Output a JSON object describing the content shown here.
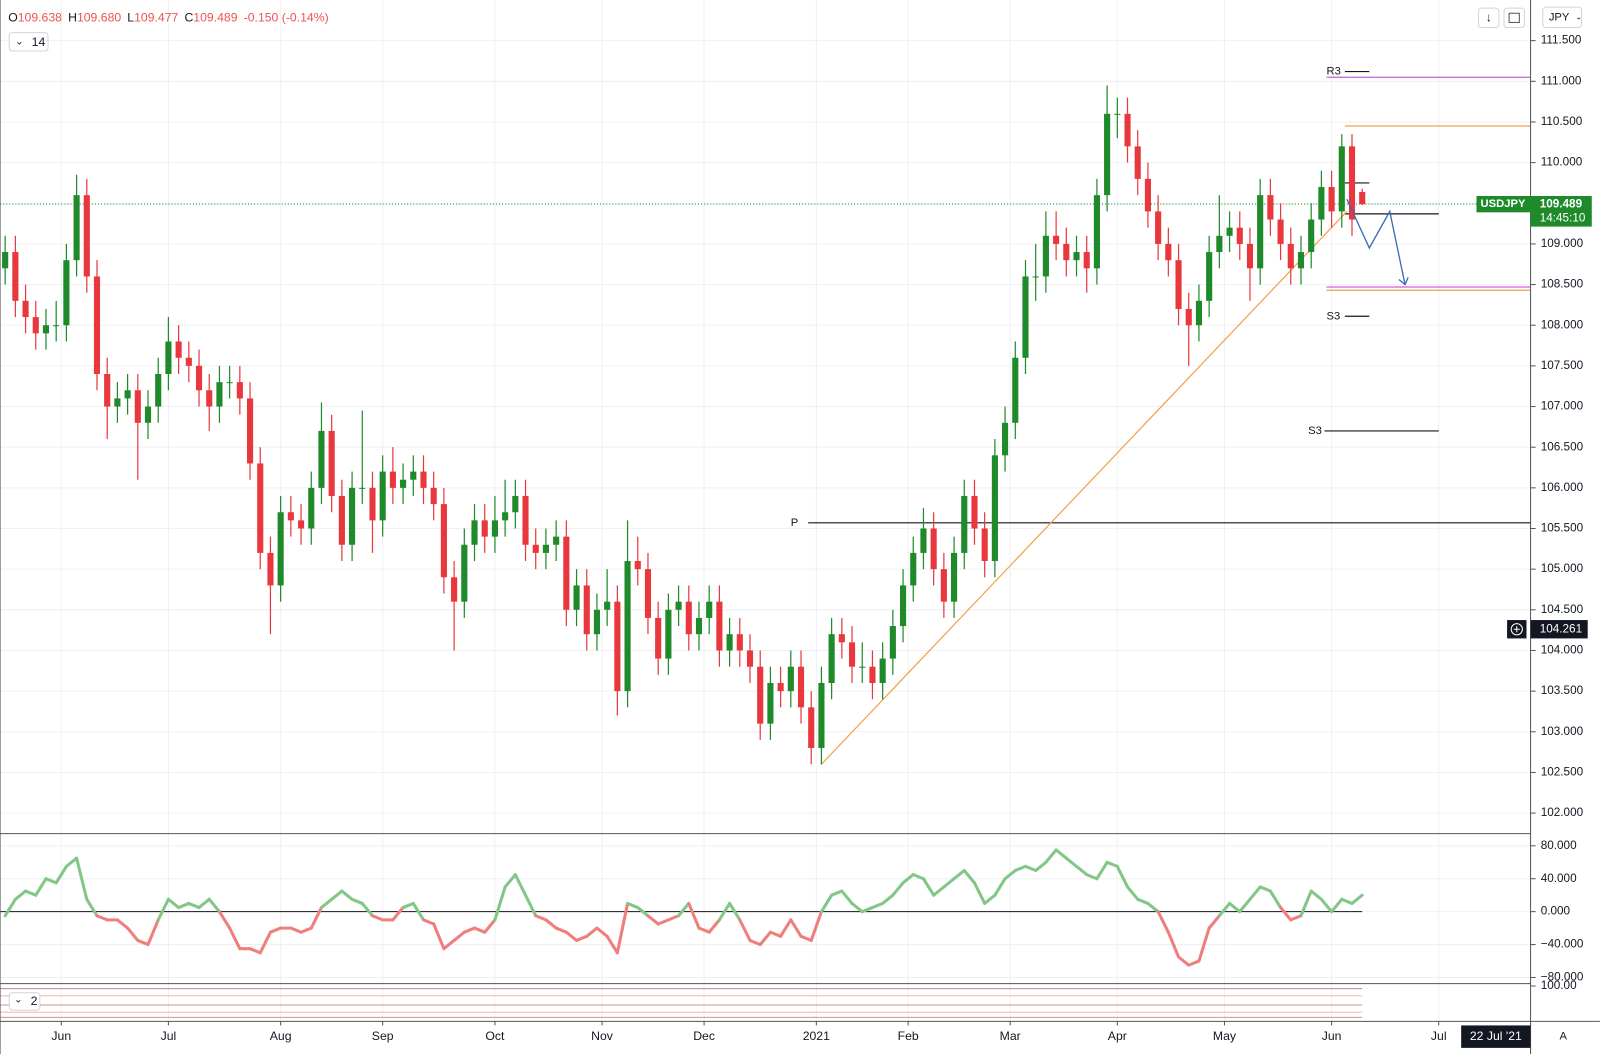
{
  "header": [
    {
      "key": "O",
      "value": "109.638"
    },
    {
      "key": "H",
      "value": "109.680"
    },
    {
      "key": "L",
      "value": "109.477"
    },
    {
      "key": "C",
      "value": "109.489"
    },
    {
      "key": "",
      "value": "-0.150 (-0.14%)"
    }
  ],
  "indicator_button": "14",
  "currency_button": "JPY",
  "date_badge": "22 Jul '21",
  "auto_button": "A",
  "chart_data": [
    {
      "type": "candlestick",
      "symbol": "USDJPY",
      "last": 109.489,
      "countdown": "14:45:10",
      "crosshair": 104.261,
      "up_color": "#1e8a2a",
      "down_color": "#e8383d",
      "grid": true,
      "xlim": [
        -0.5,
        149.5
      ],
      "ylim": [
        101.76,
        112.0
      ],
      "xticks": [
        {
          "value": 5.5,
          "label": "Jun"
        },
        {
          "value": 16,
          "label": "Jul"
        },
        {
          "value": 27,
          "label": "Aug"
        },
        {
          "value": 37,
          "label": "Sep"
        },
        {
          "value": 48,
          "label": "Oct"
        },
        {
          "value": 58.5,
          "label": "Nov"
        },
        {
          "value": 68.5,
          "label": "Dec"
        },
        {
          "value": 79.5,
          "label": "2021"
        },
        {
          "value": 88.5,
          "label": "Feb"
        },
        {
          "value": 98.5,
          "label": "Mar"
        },
        {
          "value": 109,
          "label": "Apr"
        },
        {
          "value": 119.5,
          "label": "May"
        },
        {
          "value": 130,
          "label": "Jun"
        },
        {
          "value": 140.5,
          "label": "Jul"
        }
      ],
      "yticks": [
        {
          "value": 102,
          "label": "102.000"
        },
        {
          "value": 102.5,
          "label": "102.500"
        },
        {
          "value": 103,
          "label": "103.000"
        },
        {
          "value": 103.5,
          "label": "103.500"
        },
        {
          "value": 104,
          "label": "104.000"
        },
        {
          "value": 104.5,
          "label": "104.500"
        },
        {
          "value": 105,
          "label": "105.000"
        },
        {
          "value": 105.5,
          "label": "105.500"
        },
        {
          "value": 106,
          "label": "106.000"
        },
        {
          "value": 106.5,
          "label": "106.500"
        },
        {
          "value": 107,
          "label": "107.000"
        },
        {
          "value": 107.5,
          "label": "107.500"
        },
        {
          "value": 108,
          "label": "108.000"
        },
        {
          "value": 108.5,
          "label": "108.500"
        },
        {
          "value": 109,
          "label": "109.000"
        },
        {
          "value": 109.5,
          "label": "109.500"
        },
        {
          "value": 110,
          "label": "110.000"
        },
        {
          "value": 110.5,
          "label": "110.500"
        },
        {
          "value": 111,
          "label": "111.000"
        },
        {
          "value": 111.5,
          "label": "111.500"
        }
      ],
      "candles": [
        [
          108.7,
          109.1,
          108.5,
          108.9
        ],
        [
          108.9,
          109.1,
          108.1,
          108.3
        ],
        [
          108.3,
          108.5,
          107.9,
          108.1
        ],
        [
          108.1,
          108.3,
          107.7,
          107.9
        ],
        [
          107.9,
          108.2,
          107.7,
          108.0
        ],
        [
          108.0,
          108.3,
          107.8,
          108.0
        ],
        [
          108.0,
          109.0,
          107.8,
          108.8
        ],
        [
          108.8,
          109.85,
          108.6,
          109.6
        ],
        [
          109.6,
          109.8,
          108.4,
          108.6
        ],
        [
          108.6,
          108.8,
          107.2,
          107.4
        ],
        [
          107.4,
          107.6,
          106.6,
          107.0
        ],
        [
          107.0,
          107.3,
          106.8,
          107.1
        ],
        [
          107.1,
          107.4,
          106.9,
          107.2
        ],
        [
          107.2,
          107.4,
          106.1,
          106.8
        ],
        [
          106.8,
          107.2,
          106.6,
          107.0
        ],
        [
          107.0,
          107.6,
          106.8,
          107.4
        ],
        [
          107.4,
          108.1,
          107.2,
          107.8
        ],
        [
          107.8,
          108.0,
          107.4,
          107.6
        ],
        [
          107.6,
          107.8,
          107.3,
          107.5
        ],
        [
          107.5,
          107.7,
          107.0,
          107.2
        ],
        [
          107.2,
          107.4,
          106.7,
          107.0
        ],
        [
          107.0,
          107.5,
          106.8,
          107.3
        ],
        [
          107.3,
          107.5,
          107.1,
          107.3
        ],
        [
          107.3,
          107.5,
          106.9,
          107.1
        ],
        [
          107.1,
          107.3,
          106.1,
          106.3
        ],
        [
          106.3,
          106.5,
          105.0,
          105.2
        ],
        [
          105.2,
          105.4,
          104.2,
          104.8
        ],
        [
          104.8,
          105.9,
          104.6,
          105.7
        ],
        [
          105.7,
          105.9,
          105.4,
          105.6
        ],
        [
          105.6,
          105.8,
          105.3,
          105.5
        ],
        [
          105.5,
          106.2,
          105.3,
          106.0
        ],
        [
          106.0,
          107.05,
          105.8,
          106.7
        ],
        [
          106.7,
          106.9,
          105.7,
          105.9
        ],
        [
          105.9,
          106.1,
          105.1,
          105.3
        ],
        [
          105.3,
          106.2,
          105.1,
          106.0
        ],
        [
          106.0,
          106.95,
          105.8,
          106.0
        ],
        [
          106.0,
          106.2,
          105.2,
          105.6
        ],
        [
          105.6,
          106.4,
          105.4,
          106.2
        ],
        [
          106.2,
          106.5,
          105.8,
          106.0
        ],
        [
          106.0,
          106.3,
          105.8,
          106.1
        ],
        [
          106.1,
          106.4,
          105.9,
          106.2
        ],
        [
          106.2,
          106.4,
          105.8,
          106.0
        ],
        [
          106.0,
          106.2,
          105.6,
          105.8
        ],
        [
          105.8,
          106.0,
          104.7,
          104.9
        ],
        [
          104.9,
          105.1,
          104.0,
          104.6
        ],
        [
          104.6,
          105.5,
          104.4,
          105.3
        ],
        [
          105.3,
          105.8,
          105.1,
          105.6
        ],
        [
          105.6,
          105.8,
          105.2,
          105.4
        ],
        [
          105.4,
          105.9,
          105.2,
          105.6
        ],
        [
          105.6,
          106.1,
          105.4,
          105.7
        ],
        [
          105.7,
          106.1,
          105.5,
          105.9
        ],
        [
          105.9,
          106.1,
          105.1,
          105.3
        ],
        [
          105.3,
          105.5,
          105.0,
          105.2
        ],
        [
          105.2,
          105.5,
          105.0,
          105.3
        ],
        [
          105.3,
          105.6,
          105.1,
          105.4
        ],
        [
          105.4,
          105.6,
          104.3,
          104.5
        ],
        [
          104.5,
          105.0,
          104.3,
          104.8
        ],
        [
          104.8,
          105.0,
          104.0,
          104.2
        ],
        [
          104.2,
          104.7,
          104.0,
          104.5
        ],
        [
          104.5,
          105.0,
          104.3,
          104.6
        ],
        [
          104.6,
          104.8,
          103.2,
          103.5
        ],
        [
          103.5,
          105.6,
          103.3,
          105.1
        ],
        [
          105.1,
          105.4,
          104.8,
          105.0
        ],
        [
          105.0,
          105.2,
          104.2,
          104.4
        ],
        [
          104.4,
          104.6,
          103.7,
          103.9
        ],
        [
          103.9,
          104.7,
          103.7,
          104.5
        ],
        [
          104.5,
          104.8,
          104.3,
          104.6
        ],
        [
          104.6,
          104.8,
          104.0,
          104.2
        ],
        [
          104.2,
          104.6,
          104.0,
          104.4
        ],
        [
          104.4,
          104.8,
          104.2,
          104.6
        ],
        [
          104.6,
          104.8,
          103.8,
          104.0
        ],
        [
          104.0,
          104.4,
          103.8,
          104.2
        ],
        [
          104.2,
          104.4,
          103.8,
          104.0
        ],
        [
          104.0,
          104.2,
          103.6,
          103.8
        ],
        [
          103.8,
          104.0,
          102.9,
          103.1
        ],
        [
          103.1,
          103.8,
          102.9,
          103.6
        ],
        [
          103.6,
          103.8,
          103.3,
          103.5
        ],
        [
          103.5,
          104.0,
          103.3,
          103.8
        ],
        [
          103.8,
          104.0,
          103.1,
          103.3
        ],
        [
          103.3,
          103.5,
          102.6,
          102.8
        ],
        [
          102.8,
          103.8,
          102.6,
          103.6
        ],
        [
          103.6,
          104.4,
          103.4,
          104.2
        ],
        [
          104.2,
          104.4,
          103.9,
          104.1
        ],
        [
          104.1,
          104.3,
          103.6,
          103.8
        ],
        [
          103.8,
          104.1,
          103.6,
          103.8
        ],
        [
          103.8,
          104.0,
          103.4,
          103.6
        ],
        [
          103.6,
          104.1,
          103.4,
          103.9
        ],
        [
          103.9,
          104.5,
          103.7,
          104.3
        ],
        [
          104.3,
          105.0,
          104.1,
          104.8
        ],
        [
          104.8,
          105.4,
          104.6,
          105.2
        ],
        [
          105.2,
          105.75,
          105.0,
          105.5
        ],
        [
          105.5,
          105.7,
          104.8,
          105.0
        ],
        [
          105.0,
          105.2,
          104.4,
          104.6
        ],
        [
          104.6,
          105.4,
          104.4,
          105.2
        ],
        [
          105.2,
          106.1,
          105.0,
          105.9
        ],
        [
          105.9,
          106.1,
          105.3,
          105.5
        ],
        [
          105.5,
          105.7,
          104.9,
          105.1
        ],
        [
          105.1,
          106.6,
          104.9,
          106.4
        ],
        [
          106.4,
          107.0,
          106.2,
          106.8
        ],
        [
          106.8,
          107.8,
          106.6,
          107.6
        ],
        [
          107.6,
          108.8,
          107.4,
          108.6
        ],
        [
          108.6,
          109.0,
          108.3,
          108.6
        ],
        [
          108.6,
          109.4,
          108.4,
          109.1
        ],
        [
          109.1,
          109.4,
          108.8,
          109.0
        ],
        [
          109.0,
          109.2,
          108.6,
          108.8
        ],
        [
          108.8,
          109.1,
          108.6,
          108.9
        ],
        [
          108.9,
          109.1,
          108.4,
          108.7
        ],
        [
          108.7,
          109.8,
          108.5,
          109.6
        ],
        [
          109.6,
          110.95,
          109.4,
          110.6
        ],
        [
          110.6,
          110.8,
          110.3,
          110.6
        ],
        [
          110.6,
          110.8,
          110.0,
          110.2
        ],
        [
          110.2,
          110.4,
          109.6,
          109.8
        ],
        [
          109.8,
          110.0,
          109.2,
          109.4
        ],
        [
          109.4,
          109.6,
          108.8,
          109.0
        ],
        [
          109.0,
          109.2,
          108.6,
          108.8
        ],
        [
          108.8,
          109.0,
          108.0,
          108.2
        ],
        [
          108.2,
          108.4,
          107.5,
          108.0
        ],
        [
          108.0,
          108.5,
          107.8,
          108.3
        ],
        [
          108.3,
          109.1,
          108.1,
          108.9
        ],
        [
          108.9,
          109.6,
          108.7,
          109.1
        ],
        [
          109.1,
          109.4,
          108.9,
          109.2
        ],
        [
          109.2,
          109.4,
          108.8,
          109.0
        ],
        [
          109.0,
          109.2,
          108.3,
          108.7
        ],
        [
          108.7,
          109.8,
          108.5,
          109.6
        ],
        [
          109.6,
          109.8,
          109.1,
          109.3
        ],
        [
          109.3,
          109.5,
          108.8,
          109.0
        ],
        [
          109.0,
          109.2,
          108.5,
          108.7
        ],
        [
          108.7,
          109.1,
          108.5,
          108.9
        ],
        [
          108.9,
          109.5,
          108.7,
          109.3
        ],
        [
          109.3,
          109.9,
          109.1,
          109.7
        ],
        [
          109.7,
          109.9,
          109.2,
          109.4
        ],
        [
          109.4,
          110.35,
          109.2,
          110.2
        ],
        [
          110.2,
          110.35,
          109.1,
          109.3
        ],
        [
          109.638,
          109.68,
          109.477,
          109.489
        ]
      ],
      "levels": [
        {
          "label": "R3",
          "value": 111.12,
          "color": "#131722"
        },
        {
          "value": 111.05,
          "color": "#d05ce3"
        },
        {
          "value": 110.45,
          "color": "#f0a04b"
        },
        {
          "value": 109.75,
          "color": "#131722"
        },
        {
          "value": 109.37,
          "color": "#131722"
        },
        {
          "value": 108.47,
          "color": "#d05ce3"
        },
        {
          "value": 108.43,
          "color": "#f0a04b"
        },
        {
          "label": "S3",
          "value": 108.11,
          "color": "#131722"
        },
        {
          "label": "S3",
          "value": 106.7,
          "color": "#131722"
        },
        {
          "label": "P",
          "value": 105.57,
          "color": "#131722"
        }
      ],
      "trendline": {
        "from": [
          80,
          102.6
        ],
        "to": [
          131.5,
          109.4
        ],
        "color": "#f5a04a"
      },
      "projection": {
        "points": [
          [
            131.5,
            109.55
          ],
          [
            133.7,
            108.95
          ],
          [
            135.7,
            109.4
          ],
          [
            137.2,
            108.5
          ]
        ],
        "color": "#3a6bb5"
      },
      "last_color": "#1e8a2a"
    },
    {
      "type": "line",
      "xlim": [
        -0.5,
        149.5
      ],
      "ylim": [
        -86.2,
        93.6
      ],
      "up_color": "#82c786",
      "down_color": "#ef7f7a",
      "yticks": [
        {
          "value": 80,
          "label": "80.000"
        },
        {
          "value": 40,
          "label": "40.000"
        },
        {
          "value": 0,
          "label": "0.000"
        },
        {
          "value": -40,
          "label": "−40.000"
        },
        {
          "value": -80,
          "label": "−80.000"
        }
      ],
      "values": [
        -5,
        15,
        25,
        20,
        40,
        35,
        55,
        65,
        15,
        -5,
        -10,
        -10,
        -20,
        -35,
        -40,
        -10,
        15,
        5,
        10,
        5,
        15,
        0,
        -20,
        -45,
        -45,
        -50,
        -25,
        -20,
        -20,
        -25,
        -20,
        5,
        15,
        25,
        15,
        10,
        -5,
        -10,
        -10,
        5,
        10,
        -10,
        -15,
        -45,
        -35,
        -25,
        -20,
        -25,
        -10,
        30,
        45,
        20,
        -5,
        -10,
        -20,
        -25,
        -35,
        -30,
        -20,
        -30,
        -50,
        10,
        5,
        -5,
        -15,
        -10,
        -5,
        10,
        -20,
        -25,
        -10,
        10,
        -10,
        -35,
        -40,
        -25,
        -30,
        -10,
        -30,
        -35,
        0,
        20,
        25,
        10,
        0,
        5,
        10,
        20,
        35,
        45,
        40,
        20,
        30,
        40,
        50,
        35,
        10,
        20,
        40,
        50,
        55,
        50,
        60,
        75,
        65,
        55,
        45,
        40,
        60,
        55,
        30,
        15,
        10,
        0,
        -25,
        -55,
        -65,
        -60,
        -20,
        -5,
        10,
        0,
        15,
        30,
        25,
        5,
        -10,
        -5,
        25,
        15,
        0,
        15,
        10,
        20
      ]
    },
    {
      "type": "pane",
      "ylim": [
        0,
        104
      ],
      "button": "2",
      "yticks": [
        {
          "value": 100,
          "label": "100.00"
        }
      ]
    }
  ]
}
